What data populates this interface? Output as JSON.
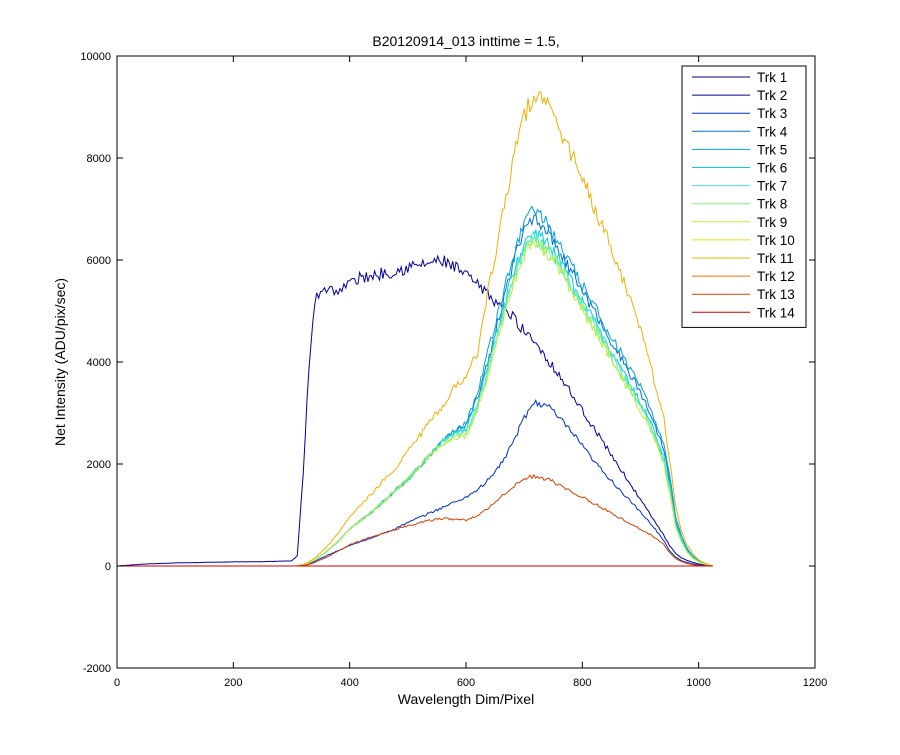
{
  "chart_data": {
    "type": "line",
    "title": "B20120914_013 inttime = 1.5,",
    "xlabel": "Wavelength Dim/Pixel",
    "ylabel": "Net Intensity (ADU/pix/sec)",
    "xlim": [
      0,
      1200
    ],
    "ylim": [
      -2000,
      10000
    ],
    "xticks": [
      0,
      200,
      400,
      600,
      800,
      1000,
      1200
    ],
    "yticks": [
      -2000,
      0,
      2000,
      4000,
      6000,
      8000,
      10000
    ],
    "grid": false,
    "legend_position": "top-right",
    "x": [
      0,
      50,
      100,
      150,
      200,
      250,
      300,
      310,
      320,
      330,
      340,
      350,
      360,
      370,
      380,
      390,
      400,
      420,
      440,
      460,
      480,
      500,
      520,
      540,
      560,
      580,
      600,
      620,
      640,
      660,
      680,
      700,
      710,
      720,
      740,
      760,
      780,
      800,
      820,
      840,
      860,
      880,
      900,
      920,
      940,
      950,
      960,
      970,
      980,
      990,
      1000,
      1010,
      1024
    ],
    "series": [
      {
        "name": "Trk 1",
        "color": "#00008f",
        "values": [
          0,
          0,
          0,
          0,
          0,
          0,
          0,
          0,
          0,
          0,
          0,
          0,
          0,
          0,
          0,
          0,
          0,
          0,
          0,
          0,
          0,
          0,
          0,
          0,
          0,
          0,
          0,
          0,
          0,
          0,
          0,
          0,
          0,
          0,
          0,
          0,
          0,
          0,
          0,
          0,
          0,
          0,
          0,
          0,
          0,
          0,
          0,
          0,
          0,
          0,
          0,
          0,
          0
        ]
      },
      {
        "name": "Trk 2",
        "color": "#00009f",
        "values": [
          0,
          40,
          60,
          70,
          80,
          85,
          100,
          200,
          1800,
          3900,
          5200,
          5400,
          5450,
          5420,
          5400,
          5460,
          5550,
          5650,
          5700,
          5750,
          5800,
          5850,
          5900,
          5950,
          5980,
          5850,
          5700,
          5500,
          5300,
          5100,
          4900,
          4600,
          4500,
          4400,
          4050,
          3750,
          3400,
          3050,
          2700,
          2350,
          2000,
          1650,
          1300,
          950,
          600,
          400,
          250,
          160,
          110,
          70,
          40,
          20,
          0
        ]
      },
      {
        "name": "Trk 3",
        "color": "#0030d0",
        "values": [
          0,
          0,
          0,
          0,
          0,
          0,
          0,
          0,
          0,
          40,
          90,
          150,
          200,
          250,
          300,
          350,
          400,
          480,
          560,
          650,
          740,
          850,
          950,
          1050,
          1150,
          1250,
          1350,
          1500,
          1700,
          2000,
          2400,
          2900,
          3100,
          3200,
          3150,
          2900,
          2650,
          2350,
          2050,
          1800,
          1550,
          1300,
          1050,
          800,
          500,
          300,
          180,
          110,
          70,
          40,
          20,
          10,
          0
        ]
      },
      {
        "name": "Trk 4",
        "color": "#0070d0",
        "values": [
          0,
          0,
          0,
          0,
          0,
          0,
          0,
          0,
          20,
          60,
          120,
          200,
          280,
          380,
          480,
          600,
          720,
          900,
          1080,
          1280,
          1500,
          1700,
          1950,
          2200,
          2450,
          2650,
          2750,
          3300,
          4100,
          5000,
          5900,
          6550,
          6800,
          6850,
          6600,
          6200,
          5800,
          5400,
          5000,
          4600,
          4200,
          3800,
          3400,
          2900,
          2300,
          1700,
          900,
          550,
          320,
          180,
          90,
          40,
          0
        ]
      },
      {
        "name": "Trk 5",
        "color": "#00a0e0",
        "values": [
          0,
          0,
          0,
          0,
          0,
          0,
          0,
          0,
          20,
          60,
          120,
          200,
          280,
          380,
          480,
          600,
          720,
          900,
          1080,
          1280,
          1500,
          1700,
          1950,
          2200,
          2450,
          2650,
          2800,
          3400,
          4300,
          5200,
          6000,
          6700,
          7000,
          7000,
          6700,
          6300,
          5900,
          5500,
          5100,
          4700,
          4300,
          3900,
          3500,
          3000,
          2400,
          1800,
          1000,
          600,
          350,
          200,
          100,
          50,
          0
        ]
      },
      {
        "name": "Trk 6",
        "color": "#00d0e0",
        "values": [
          0,
          0,
          0,
          0,
          0,
          0,
          0,
          0,
          20,
          60,
          120,
          200,
          280,
          380,
          480,
          600,
          720,
          900,
          1080,
          1280,
          1500,
          1700,
          1950,
          2200,
          2450,
          2600,
          2700,
          3200,
          4000,
          4900,
          5700,
          6300,
          6500,
          6550,
          6300,
          6000,
          5600,
          5200,
          4800,
          4400,
          4000,
          3600,
          3200,
          2750,
          2150,
          1600,
          850,
          520,
          300,
          170,
          90,
          40,
          0
        ]
      },
      {
        "name": "Trk 7",
        "color": "#40e8d8",
        "values": [
          0,
          0,
          0,
          0,
          0,
          0,
          0,
          0,
          20,
          60,
          120,
          200,
          280,
          380,
          480,
          600,
          720,
          900,
          1080,
          1280,
          1500,
          1700,
          1950,
          2200,
          2450,
          2600,
          2650,
          3150,
          3950,
          4800,
          5600,
          6200,
          6400,
          6450,
          6250,
          5950,
          5550,
          5150,
          4750,
          4350,
          3950,
          3550,
          3150,
          2700,
          2100,
          1550,
          820,
          500,
          290,
          160,
          85,
          40,
          0
        ]
      },
      {
        "name": "Trk 8",
        "color": "#80f080",
        "values": [
          0,
          0,
          0,
          0,
          0,
          0,
          0,
          0,
          20,
          60,
          120,
          200,
          280,
          380,
          480,
          600,
          720,
          900,
          1080,
          1280,
          1500,
          1700,
          1950,
          2200,
          2400,
          2550,
          2600,
          3100,
          3900,
          4750,
          5550,
          6150,
          6350,
          6400,
          6200,
          5900,
          5500,
          5100,
          4700,
          4300,
          3900,
          3500,
          3100,
          2650,
          2050,
          1500,
          800,
          490,
          280,
          160,
          80,
          40,
          0
        ]
      },
      {
        "name": "Trk 9",
        "color": "#b8f040",
        "values": [
          0,
          0,
          0,
          0,
          0,
          0,
          0,
          0,
          20,
          60,
          120,
          200,
          280,
          380,
          480,
          600,
          720,
          900,
          1080,
          1280,
          1500,
          1700,
          1950,
          2200,
          2400,
          2500,
          2550,
          3050,
          3850,
          4700,
          5500,
          6100,
          6300,
          6350,
          6150,
          5850,
          5450,
          5050,
          4650,
          4250,
          3850,
          3450,
          3050,
          2600,
          2000,
          1450,
          780,
          480,
          270,
          150,
          80,
          40,
          0
        ]
      },
      {
        "name": "Trk 10",
        "color": "#e0e000",
        "values": [
          0,
          0,
          0,
          0,
          0,
          0,
          0,
          0,
          0,
          0,
          0,
          0,
          0,
          0,
          0,
          0,
          0,
          0,
          0,
          0,
          0,
          0,
          0,
          0,
          0,
          0,
          0,
          0,
          0,
          0,
          0,
          0,
          0,
          0,
          0,
          0,
          0,
          0,
          0,
          0,
          0,
          0,
          0,
          0,
          0,
          0,
          0,
          0,
          0,
          0,
          0,
          0,
          0
        ]
      },
      {
        "name": "Trk 11",
        "color": "#f0b000",
        "values": [
          0,
          0,
          0,
          0,
          0,
          0,
          0,
          0,
          30,
          80,
          160,
          260,
          370,
          500,
          640,
          800,
          960,
          1200,
          1440,
          1700,
          1950,
          2250,
          2550,
          2850,
          3150,
          3500,
          3700,
          4200,
          5500,
          6700,
          7900,
          8800,
          9100,
          9250,
          9000,
          8600,
          8100,
          7600,
          7050,
          6500,
          5900,
          5300,
          4600,
          3800,
          2900,
          2100,
          1200,
          700,
          420,
          240,
          120,
          60,
          0
        ]
      },
      {
        "name": "Trk 12",
        "color": "#f07000",
        "values": [
          0,
          0,
          0,
          0,
          0,
          0,
          0,
          0,
          0,
          0,
          0,
          0,
          0,
          0,
          0,
          0,
          0,
          0,
          0,
          0,
          0,
          0,
          0,
          0,
          0,
          0,
          0,
          0,
          0,
          0,
          0,
          0,
          0,
          0,
          0,
          0,
          0,
          0,
          0,
          0,
          0,
          0,
          0,
          0,
          0,
          0,
          0,
          0,
          0,
          0,
          0,
          0,
          0
        ]
      },
      {
        "name": "Trk 13",
        "color": "#d84000",
        "values": [
          0,
          0,
          0,
          0,
          0,
          0,
          0,
          0,
          10,
          30,
          70,
          120,
          170,
          230,
          290,
          360,
          420,
          500,
          570,
          650,
          720,
          790,
          850,
          900,
          930,
          920,
          900,
          1000,
          1150,
          1350,
          1550,
          1700,
          1750,
          1760,
          1700,
          1600,
          1480,
          1350,
          1230,
          1100,
          970,
          850,
          720,
          600,
          420,
          260,
          150,
          90,
          50,
          25,
          10,
          5,
          0
        ]
      },
      {
        "name": "Trk 14",
        "color": "#cc0000",
        "values": [
          0,
          0,
          0,
          0,
          0,
          0,
          0,
          0,
          0,
          0,
          0,
          0,
          0,
          0,
          0,
          0,
          0,
          0,
          0,
          0,
          0,
          0,
          0,
          0,
          0,
          0,
          0,
          0,
          0,
          0,
          0,
          0,
          0,
          0,
          0,
          0,
          0,
          0,
          0,
          0,
          0,
          0,
          0,
          0,
          0,
          0,
          0,
          0,
          0,
          0,
          0,
          0,
          0
        ]
      }
    ]
  }
}
